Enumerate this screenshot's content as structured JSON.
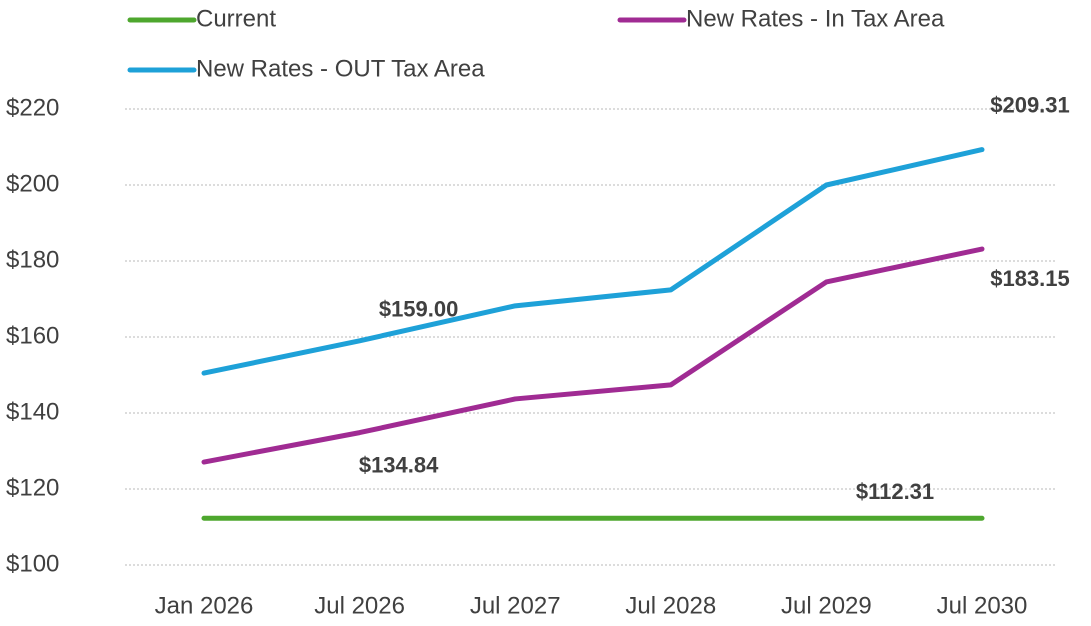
{
  "chart_data": {
    "type": "line",
    "categories": [
      "Jan 2026",
      "Jul 2026",
      "Jul 2027",
      "Jul 2028",
      "Jul 2029",
      "Jul 2030"
    ],
    "series": [
      {
        "name": "Current",
        "color": "#4ea72e",
        "values": [
          112.31,
          112.31,
          112.31,
          112.31,
          112.31,
          112.31
        ],
        "value_labels": [
          null,
          null,
          null,
          null,
          null,
          "$112.31"
        ]
      },
      {
        "name": "New Rates - In Tax Area",
        "color": "#a02b93",
        "values": [
          127.1,
          134.84,
          143.7,
          147.4,
          174.5,
          183.15
        ],
        "value_labels": [
          null,
          "$134.84",
          null,
          null,
          null,
          "$183.15"
        ]
      },
      {
        "name": "New Rates - OUT Tax Area",
        "color": "#1ea1d8",
        "values": [
          150.5,
          159.0,
          168.2,
          172.4,
          200.0,
          209.31
        ],
        "value_labels": [
          null,
          "$159.00",
          null,
          null,
          null,
          "$209.31"
        ]
      }
    ],
    "ylim": [
      100,
      220
    ],
    "yticks": [
      {
        "value": 100,
        "label": "$100"
      },
      {
        "value": 120,
        "label": "$120"
      },
      {
        "value": 140,
        "label": "$140"
      },
      {
        "value": 160,
        "label": "$160"
      },
      {
        "value": 180,
        "label": "$180"
      },
      {
        "value": 200,
        "label": "$200"
      },
      {
        "value": 220,
        "label": "$220"
      }
    ],
    "grid": true,
    "legend": "top"
  }
}
